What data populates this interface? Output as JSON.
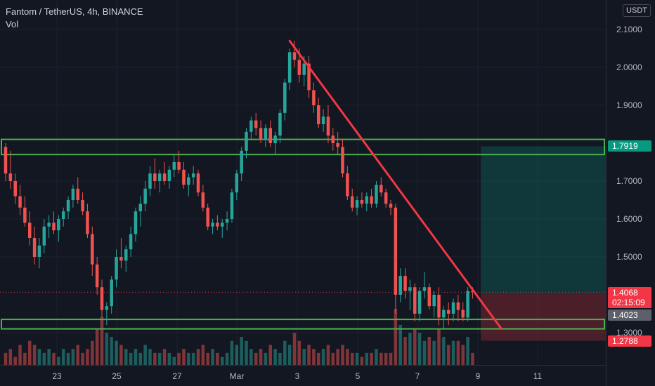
{
  "legend": {
    "symbol": "Fantom / TetherUS, 4h, BINANCE",
    "indicator": "Vol"
  },
  "price_axis": {
    "currency": "USDT",
    "ticks": [
      "2.1000",
      "2.0000",
      "1.9000",
      "1.7000",
      "1.6000",
      "1.5000",
      "1.3000"
    ],
    "tick_values": [
      2.1,
      2.0,
      1.9,
      1.7,
      1.6,
      1.5,
      1.3
    ],
    "tags": {
      "target": "1.7919",
      "current": "1.4068",
      "countdown": "02:15:09",
      "entry": "1.4023",
      "stop": "1.2788"
    }
  },
  "time_axis": {
    "labels": [
      "23",
      "25",
      "27",
      "Mar",
      "3",
      "5",
      "7",
      "9",
      "11"
    ]
  },
  "colors": {
    "up": "#26a69a",
    "down": "#ef5350",
    "zone": "#4caf50",
    "trendline": "#f23645",
    "profit": "#089981",
    "loss": "#f23645",
    "current": "#f23645",
    "entry": "#5d606b"
  },
  "chart_data": {
    "type": "candlestick",
    "candles": [
      [
        1.79,
        1.8,
        1.7,
        1.72
      ],
      [
        1.72,
        1.78,
        1.68,
        1.7
      ],
      [
        1.7,
        1.72,
        1.64,
        1.66
      ],
      [
        1.66,
        1.69,
        1.61,
        1.63
      ],
      [
        1.63,
        1.66,
        1.58,
        1.59
      ],
      [
        1.59,
        1.62,
        1.53,
        1.55
      ],
      [
        1.55,
        1.58,
        1.48,
        1.5
      ],
      [
        1.5,
        1.55,
        1.47,
        1.53
      ],
      [
        1.53,
        1.6,
        1.51,
        1.58
      ],
      [
        1.58,
        1.61,
        1.55,
        1.59
      ],
      [
        1.59,
        1.62,
        1.56,
        1.57
      ],
      [
        1.57,
        1.61,
        1.54,
        1.6
      ],
      [
        1.6,
        1.63,
        1.58,
        1.62
      ],
      [
        1.62,
        1.66,
        1.6,
        1.65
      ],
      [
        1.65,
        1.69,
        1.63,
        1.68
      ],
      [
        1.68,
        1.71,
        1.64,
        1.65
      ],
      [
        1.65,
        1.67,
        1.61,
        1.62
      ],
      [
        1.62,
        1.64,
        1.55,
        1.56
      ],
      [
        1.56,
        1.58,
        1.45,
        1.48
      ],
      [
        1.48,
        1.5,
        1.4,
        1.42
      ],
      [
        1.42,
        1.44,
        1.34,
        1.36
      ],
      [
        1.36,
        1.38,
        1.32,
        1.37
      ],
      [
        1.37,
        1.45,
        1.35,
        1.44
      ],
      [
        1.44,
        1.52,
        1.42,
        1.5
      ],
      [
        1.5,
        1.55,
        1.47,
        1.49
      ],
      [
        1.49,
        1.53,
        1.46,
        1.52
      ],
      [
        1.52,
        1.58,
        1.5,
        1.56
      ],
      [
        1.56,
        1.63,
        1.54,
        1.62
      ],
      [
        1.62,
        1.66,
        1.58,
        1.64
      ],
      [
        1.64,
        1.7,
        1.62,
        1.68
      ],
      [
        1.68,
        1.74,
        1.66,
        1.72
      ],
      [
        1.72,
        1.76,
        1.68,
        1.7
      ],
      [
        1.7,
        1.73,
        1.67,
        1.72
      ],
      [
        1.72,
        1.75,
        1.69,
        1.7
      ],
      [
        1.7,
        1.74,
        1.68,
        1.73
      ],
      [
        1.73,
        1.77,
        1.71,
        1.75
      ],
      [
        1.75,
        1.78,
        1.72,
        1.73
      ],
      [
        1.73,
        1.75,
        1.68,
        1.69
      ],
      [
        1.69,
        1.72,
        1.66,
        1.71
      ],
      [
        1.71,
        1.74,
        1.69,
        1.72
      ],
      [
        1.72,
        1.73,
        1.66,
        1.67
      ],
      [
        1.67,
        1.69,
        1.62,
        1.63
      ],
      [
        1.63,
        1.64,
        1.57,
        1.58
      ],
      [
        1.58,
        1.6,
        1.56,
        1.59
      ],
      [
        1.59,
        1.61,
        1.57,
        1.58
      ],
      [
        1.58,
        1.6,
        1.55,
        1.59
      ],
      [
        1.59,
        1.62,
        1.57,
        1.6
      ],
      [
        1.6,
        1.68,
        1.59,
        1.67
      ],
      [
        1.67,
        1.73,
        1.65,
        1.72
      ],
      [
        1.72,
        1.79,
        1.7,
        1.78
      ],
      [
        1.78,
        1.84,
        1.76,
        1.83
      ],
      [
        1.83,
        1.87,
        1.81,
        1.86
      ],
      [
        1.86,
        1.88,
        1.82,
        1.84
      ],
      [
        1.84,
        1.86,
        1.8,
        1.81
      ],
      [
        1.81,
        1.85,
        1.79,
        1.84
      ],
      [
        1.84,
        1.86,
        1.79,
        1.8
      ],
      [
        1.8,
        1.83,
        1.77,
        1.82
      ],
      [
        1.82,
        1.89,
        1.8,
        1.88
      ],
      [
        1.88,
        1.97,
        1.86,
        1.96
      ],
      [
        1.96,
        2.05,
        1.94,
        2.04
      ],
      [
        2.04,
        2.07,
        2.0,
        2.02
      ],
      [
        2.02,
        2.05,
        1.96,
        1.98
      ],
      [
        1.98,
        2.03,
        1.95,
        2.01
      ],
      [
        2.01,
        2.03,
        1.92,
        1.94
      ],
      [
        1.94,
        1.96,
        1.88,
        1.9
      ],
      [
        1.9,
        1.92,
        1.84,
        1.85
      ],
      [
        1.85,
        1.89,
        1.83,
        1.87
      ],
      [
        1.87,
        1.9,
        1.8,
        1.82
      ],
      [
        1.82,
        1.84,
        1.78,
        1.8
      ],
      [
        1.8,
        1.83,
        1.77,
        1.79
      ],
      [
        1.79,
        1.81,
        1.71,
        1.72
      ],
      [
        1.72,
        1.74,
        1.65,
        1.66
      ],
      [
        1.66,
        1.68,
        1.62,
        1.63
      ],
      [
        1.63,
        1.66,
        1.61,
        1.65
      ],
      [
        1.65,
        1.67,
        1.63,
        1.64
      ],
      [
        1.64,
        1.67,
        1.62,
        1.66
      ],
      [
        1.66,
        1.68,
        1.63,
        1.64
      ],
      [
        1.64,
        1.7,
        1.63,
        1.69
      ],
      [
        1.69,
        1.71,
        1.66,
        1.67
      ],
      [
        1.67,
        1.68,
        1.63,
        1.64
      ],
      [
        1.64,
        1.65,
        1.61,
        1.63
      ],
      [
        1.63,
        1.64,
        1.35,
        1.4
      ],
      [
        1.4,
        1.47,
        1.38,
        1.45
      ],
      [
        1.45,
        1.47,
        1.39,
        1.41
      ],
      [
        1.41,
        1.44,
        1.36,
        1.42
      ],
      [
        1.42,
        1.43,
        1.33,
        1.35
      ],
      [
        1.35,
        1.42,
        1.33,
        1.41
      ],
      [
        1.41,
        1.46,
        1.39,
        1.42
      ],
      [
        1.42,
        1.43,
        1.36,
        1.37
      ],
      [
        1.37,
        1.41,
        1.34,
        1.4
      ],
      [
        1.4,
        1.42,
        1.32,
        1.34
      ],
      [
        1.34,
        1.37,
        1.31,
        1.36
      ],
      [
        1.36,
        1.38,
        1.32,
        1.35
      ],
      [
        1.35,
        1.39,
        1.33,
        1.38
      ],
      [
        1.38,
        1.4,
        1.33,
        1.36
      ],
      [
        1.36,
        1.38,
        1.33,
        1.34
      ],
      [
        1.34,
        1.42,
        1.33,
        1.41
      ],
      [
        1.41,
        1.42,
        1.39,
        1.4068
      ]
    ],
    "volumes": [
      3,
      4,
      2,
      5,
      3,
      6,
      5,
      4,
      3,
      4,
      3,
      2,
      4,
      3,
      4,
      5,
      3,
      4,
      6,
      9,
      12,
      8,
      7,
      6,
      5,
      4,
      3,
      4,
      3,
      5,
      4,
      3,
      3,
      4,
      3,
      2,
      3,
      4,
      3,
      3,
      4,
      5,
      3,
      4,
      3,
      2,
      3,
      6,
      5,
      7,
      6,
      4,
      3,
      4,
      3,
      5,
      4,
      3,
      6,
      5,
      8,
      6,
      4,
      5,
      4,
      3,
      4,
      5,
      3,
      4,
      5,
      4,
      3,
      3,
      2,
      3,
      3,
      4,
      3,
      3,
      3,
      14,
      10,
      7,
      8,
      9,
      8,
      6,
      7,
      6,
      9,
      7,
      5,
      6,
      6,
      5,
      7,
      3
    ],
    "zones": [
      [
        1.77,
        1.81
      ],
      [
        1.31,
        1.335
      ]
    ],
    "trendline": {
      "from": [
        59,
        2.07
      ],
      "to": [
        103,
        1.31
      ]
    },
    "position": {
      "entry": 1.4023,
      "target": 1.7919,
      "stop": 1.2788,
      "start_index": 99
    },
    "ylim": [
      1.19,
      2.15
    ]
  }
}
